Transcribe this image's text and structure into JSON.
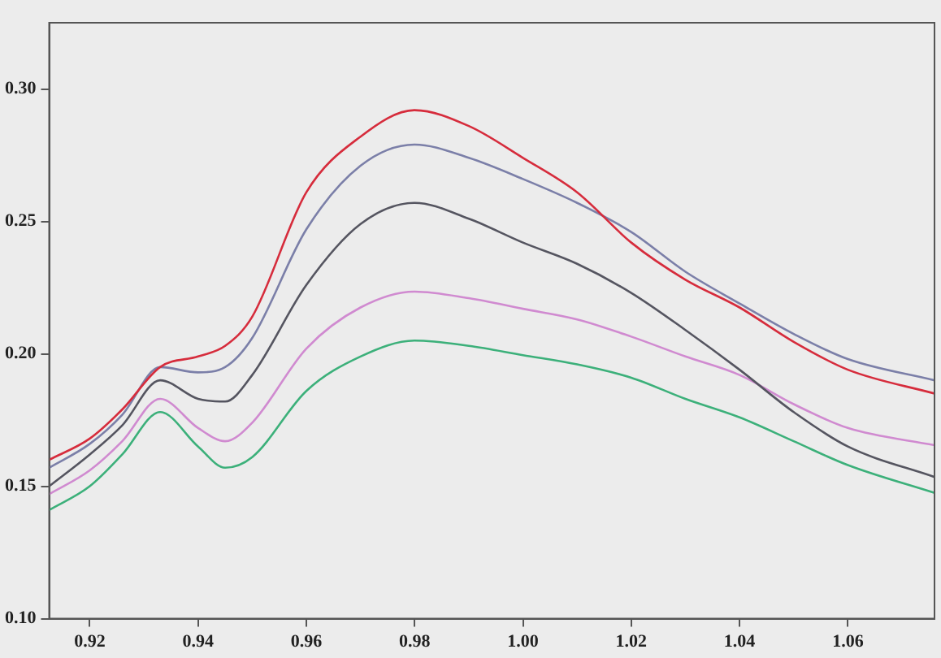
{
  "chart_data": {
    "type": "line",
    "x": [
      0.9125,
      0.92,
      0.926,
      0.933,
      0.94,
      0.945,
      0.95,
      0.96,
      0.97,
      0.98,
      0.99,
      1.0,
      1.01,
      1.02,
      1.03,
      1.04,
      1.05,
      1.06,
      1.076
    ],
    "series": [
      {
        "color": "#d62c3c",
        "values": [
          0.16,
          0.168,
          0.179,
          0.195,
          0.199,
          0.203,
          0.214,
          0.261,
          0.282,
          0.292,
          0.286,
          0.274,
          0.261,
          0.242,
          0.228,
          0.2175,
          0.2045,
          0.194,
          0.185
        ]
      },
      {
        "color": "#7b7fa8",
        "values": [
          0.157,
          0.166,
          0.177,
          0.195,
          0.193,
          0.195,
          0.206,
          0.247,
          0.271,
          0.279,
          0.274,
          0.266,
          0.257,
          0.246,
          0.231,
          0.219,
          0.2075,
          0.198,
          0.19
        ]
      },
      {
        "color": "#555560",
        "values": [
          0.15,
          0.162,
          0.173,
          0.19,
          0.183,
          0.182,
          0.192,
          0.226,
          0.249,
          0.257,
          0.251,
          0.242,
          0.234,
          0.223,
          0.209,
          0.194,
          0.178,
          0.165,
          0.1535
        ]
      },
      {
        "color": "#d08ad0",
        "values": [
          0.147,
          0.156,
          0.167,
          0.183,
          0.172,
          0.167,
          0.174,
          0.202,
          0.2175,
          0.2235,
          0.221,
          0.217,
          0.213,
          0.2065,
          0.199,
          0.192,
          0.181,
          0.172,
          0.1655
        ]
      },
      {
        "color": "#3cb07a",
        "values": [
          0.141,
          0.15,
          0.162,
          0.178,
          0.165,
          0.157,
          0.161,
          0.186,
          0.199,
          0.205,
          0.203,
          0.1995,
          0.196,
          0.191,
          0.183,
          0.176,
          0.167,
          0.158,
          0.1475
        ]
      }
    ],
    "xlim": [
      0.9125,
      1.076
    ],
    "xticks": [
      {
        "value": 0.92,
        "label": "0.92"
      },
      {
        "value": 0.94,
        "label": "0.94"
      },
      {
        "value": 0.96,
        "label": "0.96"
      },
      {
        "value": 0.98,
        "label": "0.98"
      },
      {
        "value": 1.0,
        "label": "1.00"
      },
      {
        "value": 1.02,
        "label": "1.02"
      },
      {
        "value": 1.04,
        "label": "1.04"
      },
      {
        "value": 1.06,
        "label": "1.06"
      }
    ],
    "ylim": [
      0.1,
      0.325
    ],
    "yticks": [
      {
        "value": 0.1,
        "label": "0.10"
      },
      {
        "value": 0.15,
        "label": "0.15"
      },
      {
        "value": 0.2,
        "label": "0.20"
      },
      {
        "value": 0.25,
        "label": "0.25"
      },
      {
        "value": 0.3,
        "label": "0.30"
      }
    ],
    "grid": false,
    "legend": false,
    "marker": "none",
    "line_style": "solid"
  }
}
